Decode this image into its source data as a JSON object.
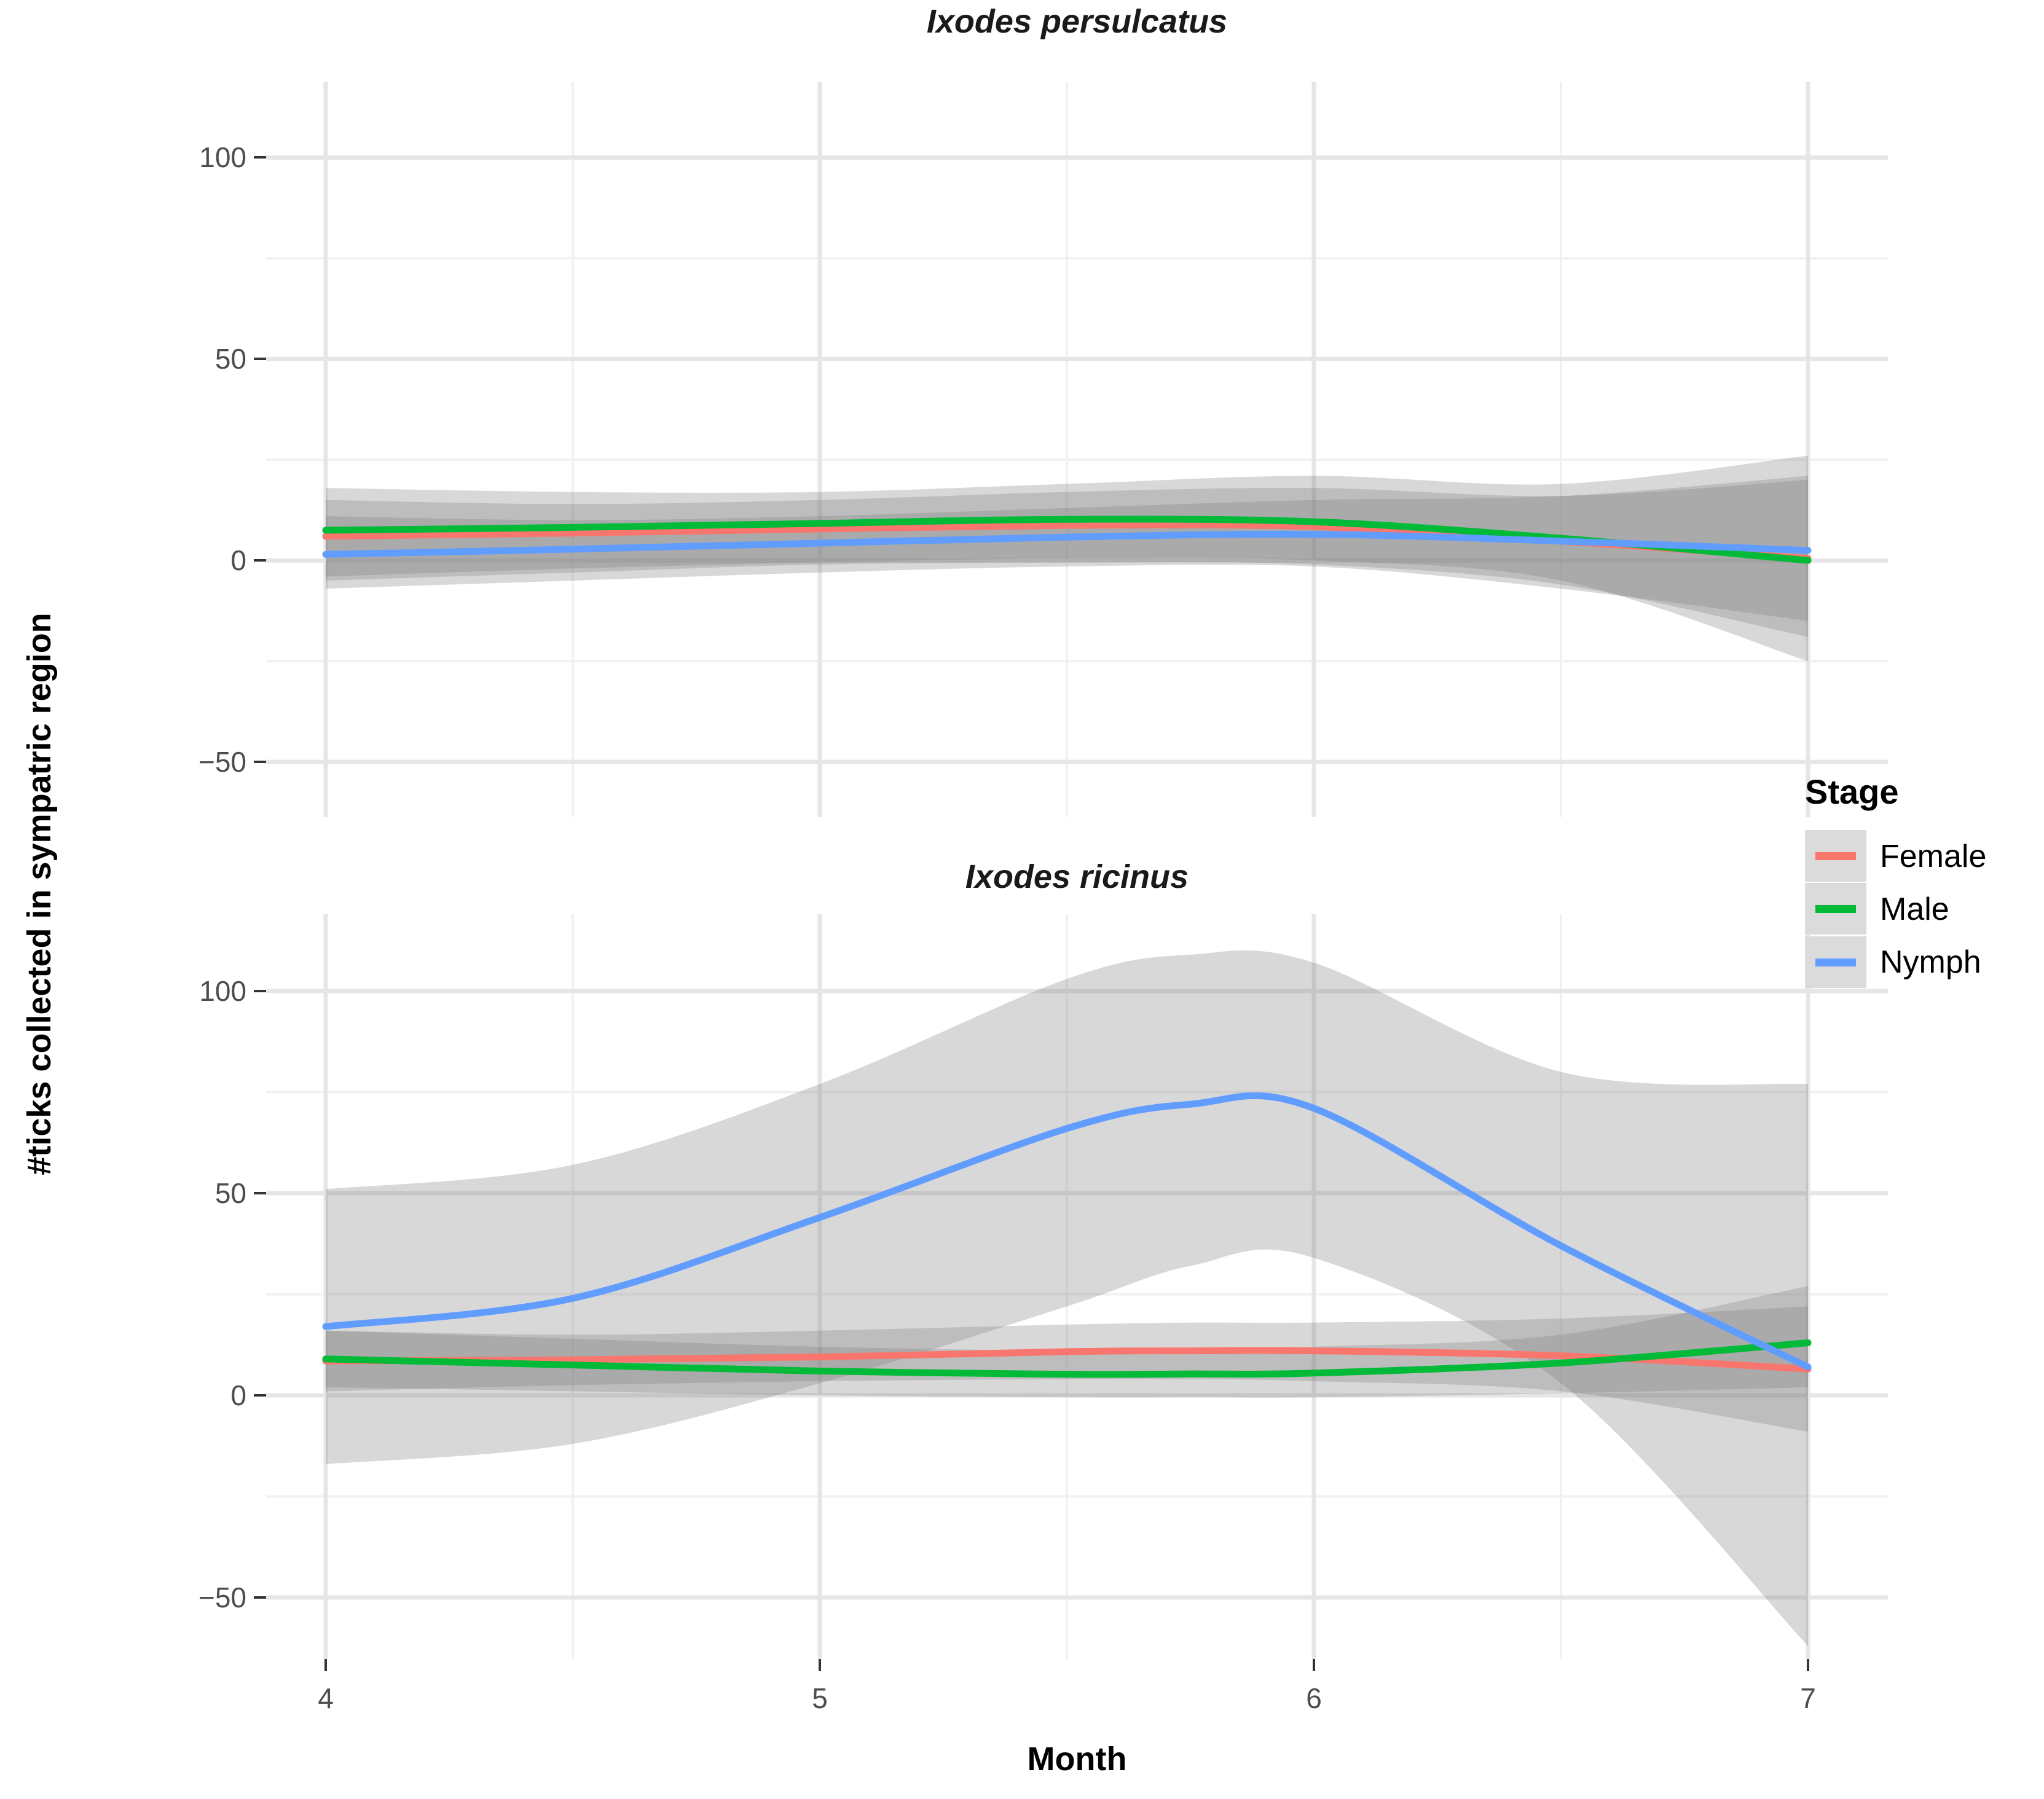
{
  "figure": {
    "x_axis_title": "Month",
    "y_axis_title": "#ticks collected in sympatric region"
  },
  "axes": {
    "x": {
      "tick_labels": [
        "4",
        "5",
        "6",
        "7"
      ],
      "tick_values": [
        4,
        5,
        6,
        7
      ],
      "minor_values": [
        4.5,
        5.5,
        6.5
      ],
      "range": [
        3.88,
        7.16
      ]
    },
    "y": {
      "tick_labels": [
        "100",
        "50",
        "0",
        "−50"
      ],
      "tick_values": [
        100,
        50,
        0,
        -50
      ],
      "minor_values": [
        75,
        25,
        -25
      ],
      "range": [
        -65,
        119
      ]
    }
  },
  "legend": {
    "title": "Stage",
    "entries": [
      {
        "label": "Female",
        "color": "#F8766D"
      },
      {
        "label": "Male",
        "color": "#00BA38"
      },
      {
        "label": "Nymph",
        "color": "#619CFF"
      }
    ]
  },
  "style": {
    "ribbon_color": "#7F7F7F",
    "ribbon_opacity": 0.3,
    "grid_major": "#E6E6E6",
    "grid_minor": "#F1F1F1",
    "axis_text": "#4D4D4D",
    "tick_color": "#333333",
    "line_width": 11
  },
  "chart_data": [
    {
      "type": "line",
      "title": "Ixodes persulcatus",
      "xlabel": "Month",
      "ylabel": "#ticks collected in sympatric region",
      "x": [
        4,
        4.5,
        5,
        5.5,
        6,
        6.5,
        7
      ],
      "ylim": [
        -65,
        119
      ],
      "series": [
        {
          "name": "Female",
          "color": "#F8766D",
          "y": [
            6,
            6.8,
            7.8,
            8.7,
            8.4,
            4.8,
            0.5
          ],
          "ci_low": [
            -5,
            -3,
            -1,
            -0.5,
            -1,
            -6,
            -19
          ],
          "ci_high": [
            15,
            14,
            15,
            17,
            18,
            16,
            20
          ]
        },
        {
          "name": "Male",
          "color": "#00BA38",
          "y": [
            7.5,
            8.2,
            9.2,
            10.2,
            9.6,
            5.5,
            0
          ],
          "ci_low": [
            -4,
            -2,
            -0.5,
            0.5,
            0,
            -5,
            -25
          ],
          "ci_high": [
            18,
            17,
            17,
            19,
            21,
            19,
            26
          ]
        },
        {
          "name": "Nymph",
          "color": "#619CFF",
          "y": [
            1.5,
            2.8,
            4.3,
            5.8,
            6.5,
            4.8,
            2.5
          ],
          "ci_low": [
            -7,
            -5,
            -3,
            -1.5,
            -1.5,
            -7,
            -15
          ],
          "ci_high": [
            11,
            10,
            11,
            13,
            15,
            16,
            21
          ]
        }
      ]
    },
    {
      "type": "line",
      "title": "Ixodes ricinus",
      "xlabel": "Month",
      "ylabel": "#ticks collected in sympatric region",
      "x": [
        4,
        4.5,
        5,
        5.5,
        5.75,
        6,
        6.5,
        7
      ],
      "ylim": [
        -65,
        119
      ],
      "series": [
        {
          "name": "Female",
          "color": "#F8766D",
          "y": [
            8.5,
            8.8,
            9.5,
            10.8,
            11,
            11,
            9.8,
            6.5
          ],
          "ci_low": [
            1,
            2.5,
            3.5,
            4,
            4,
            3.5,
            1,
            -9
          ],
          "ci_high": [
            16,
            15,
            16,
            17.5,
            18,
            18,
            19,
            22
          ]
        },
        {
          "name": "Male",
          "color": "#00BA38",
          "y": [
            9,
            7.5,
            6,
            5.2,
            5.3,
            5.5,
            8,
            13
          ],
          "ci_low": [
            2,
            1,
            0,
            -0.5,
            -0.5,
            -0.5,
            0.5,
            2
          ],
          "ci_high": [
            16,
            14,
            12,
            11,
            11,
            12,
            15,
            27
          ]
        },
        {
          "name": "Nymph",
          "color": "#619CFF",
          "y": [
            17,
            24,
            44,
            66,
            72,
            71,
            37,
            7
          ],
          "ci_low": [
            -17,
            -12,
            3,
            22,
            32,
            34,
            3,
            -62
          ],
          "ci_high": [
            51,
            57,
            77,
            103,
            109,
            107,
            80,
            77
          ]
        }
      ]
    }
  ]
}
